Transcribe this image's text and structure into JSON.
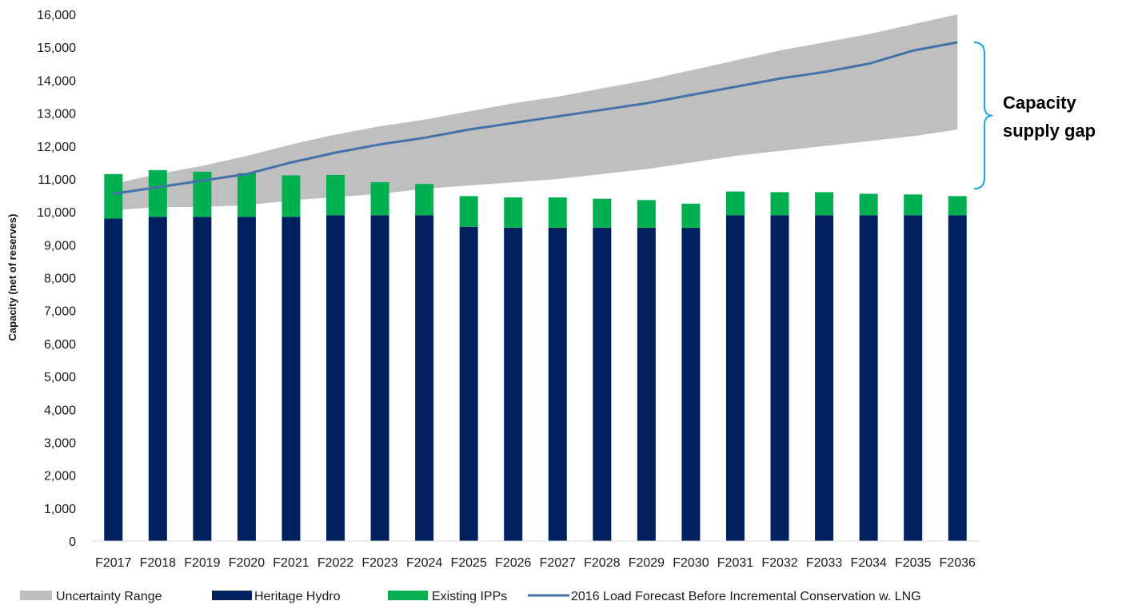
{
  "chart_data": {
    "type": "bar",
    "ylabel": "Capacity (net of reserves)",
    "ylim": [
      0,
      16000
    ],
    "ytick_step": 1000,
    "categories": [
      "F2017",
      "F2018",
      "F2019",
      "F2020",
      "F2021",
      "F2022",
      "F2023",
      "F2024",
      "F2025",
      "F2026",
      "F2027",
      "F2028",
      "F2029",
      "F2030",
      "F2031",
      "F2032",
      "F2033",
      "F2034",
      "F2035",
      "F2036"
    ],
    "series": [
      {
        "name": "Heritage Hydro",
        "kind": "stacked-bar",
        "color": "#002060",
        "values": [
          9800,
          9850,
          9850,
          9850,
          9850,
          9900,
          9900,
          9900,
          9550,
          9520,
          9520,
          9520,
          9520,
          9520,
          9900,
          9900,
          9900,
          9900,
          9900,
          9900
        ]
      },
      {
        "name": "Existing IPPs",
        "kind": "stacked-bar",
        "color": "#00B050",
        "values": [
          1350,
          1420,
          1370,
          1330,
          1260,
          1220,
          1000,
          950,
          930,
          920,
          920,
          880,
          840,
          730,
          720,
          700,
          700,
          650,
          630,
          580
        ]
      },
      {
        "name": "Uncertainty Range",
        "kind": "band",
        "color": "#BFBFBF",
        "low": [
          10050,
          10150,
          10150,
          10200,
          10350,
          10450,
          10550,
          10700,
          10800,
          10900,
          11000,
          11150,
          11300,
          11500,
          11700,
          11850,
          12000,
          12150,
          12300,
          12500
        ],
        "high": [
          10850,
          11150,
          11400,
          11700,
          12050,
          12350,
          12600,
          12800,
          13050,
          13300,
          13500,
          13750,
          14000,
          14300,
          14600,
          14900,
          15150,
          15400,
          15700,
          16000
        ]
      },
      {
        "name": "2016 Load Forecast Before Incremental Conservation w. LNG",
        "kind": "line",
        "color": "#4472A8",
        "values": [
          10550,
          10750,
          10950,
          11150,
          11500,
          11800,
          12050,
          12250,
          12500,
          12700,
          12900,
          13100,
          13300,
          13550,
          13800,
          14050,
          14250,
          14500,
          14900,
          15150
        ]
      }
    ],
    "legend_position": "bottom",
    "annotation": {
      "lines": [
        "Capacity",
        "supply gap"
      ],
      "bracket_color": "#1AA3E8",
      "bracket_from": 10700,
      "bracket_to": 15150
    },
    "grid": false
  }
}
